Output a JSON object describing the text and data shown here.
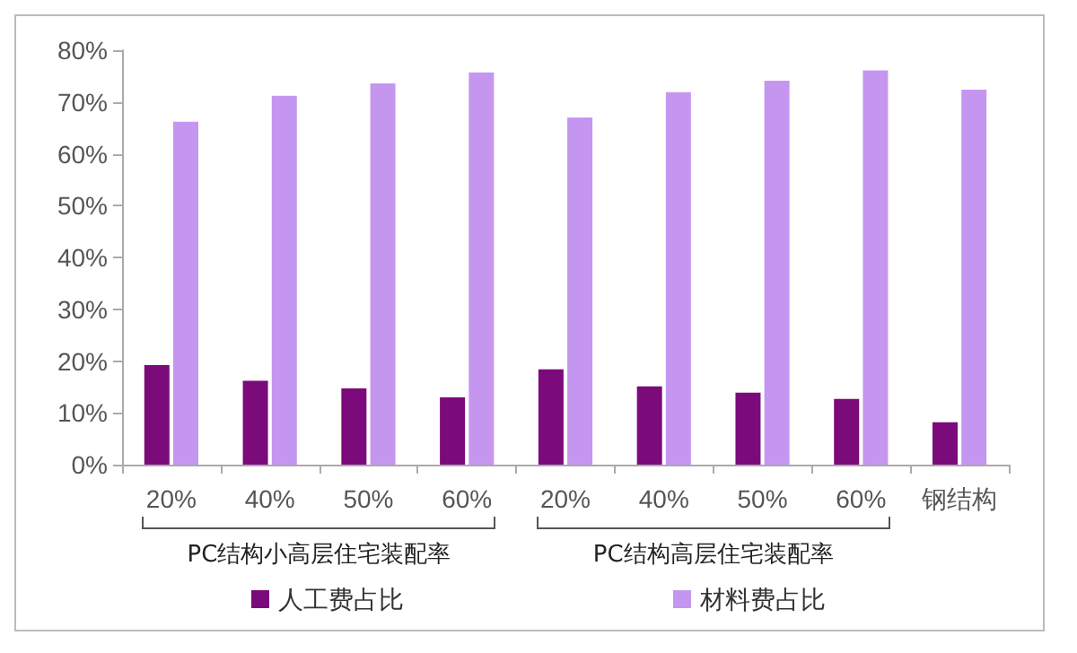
{
  "chart_data": {
    "type": "bar",
    "categories": [
      "20%",
      "40%",
      "50%",
      "60%",
      "20%",
      "40%",
      "50%",
      "60%",
      "钢结构"
    ],
    "series": [
      {
        "name": "人工费占比",
        "color": "#7b0a7b",
        "values": [
          19.2,
          16.2,
          14.7,
          13.0,
          18.4,
          15.1,
          13.9,
          12.7,
          8.2
        ]
      },
      {
        "name": "材料费占比",
        "color": "#c596f0",
        "values": [
          66.2,
          71.2,
          73.6,
          75.7,
          67.0,
          71.9,
          74.1,
          76.1,
          72.4
        ]
      }
    ],
    "ylim": [
      0,
      80
    ],
    "yticks": [
      {
        "value": 0,
        "label": "0%"
      },
      {
        "value": 10,
        "label": "10%"
      },
      {
        "value": 20,
        "label": "20%"
      },
      {
        "value": 30,
        "label": "30%"
      },
      {
        "value": 40,
        "label": "40%"
      },
      {
        "value": 50,
        "label": "50%"
      },
      {
        "value": 60,
        "label": "60%"
      },
      {
        "value": 70,
        "label": "70%"
      },
      {
        "value": 80,
        "label": "80%"
      }
    ],
    "annotations": [
      "PC结构小高层住宅装配率",
      "PC结构高层住宅装配率"
    ],
    "grid": false,
    "legend": "bottom"
  }
}
